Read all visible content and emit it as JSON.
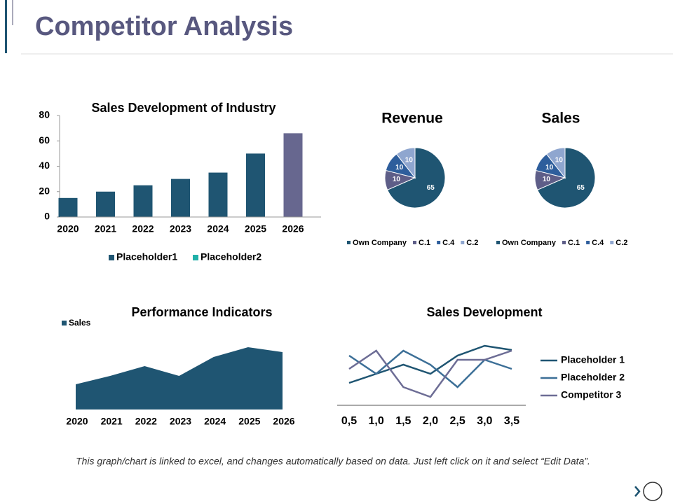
{
  "title": "Competitor Analysis",
  "footer": "This graph/chart is linked to excel, and changes automatically based on data. Just left click on it and select “Edit Data”.",
  "chart_data": [
    {
      "type": "bar",
      "title": "Sales Development of Industry",
      "categories": [
        "2020",
        "2021",
        "2022",
        "2023",
        "2024",
        "2025",
        "2026"
      ],
      "series": [
        {
          "name": "Placeholder1",
          "color": "#1f5572",
          "point_colors": [
            "#1f5572",
            "#1f5572",
            "#1f5572",
            "#1f5572",
            "#1f5572",
            "#1f5572",
            "#67678f"
          ],
          "values": [
            15,
            20,
            25,
            30,
            35,
            50,
            66
          ]
        },
        {
          "name": "Placeholder2",
          "color": "#1fb0a8",
          "values": [
            null,
            null,
            null,
            null,
            null,
            null,
            null
          ]
        }
      ],
      "ylim": [
        0,
        80
      ],
      "yticks": [
        0,
        20,
        40,
        60,
        80
      ],
      "grid": false
    },
    {
      "type": "pie",
      "title": "Revenue",
      "categories": [
        "Own Company",
        "C.1",
        "C.4",
        "C.2"
      ],
      "values": [
        65,
        10,
        10,
        10
      ],
      "colors": [
        "#1f5572",
        "#5e5e88",
        "#2e5e9c",
        "#8fa6cf"
      ]
    },
    {
      "type": "pie",
      "title": "Sales",
      "categories": [
        "Own Company",
        "C.1",
        "C.4",
        "C.2"
      ],
      "values": [
        65,
        10,
        10,
        10
      ],
      "colors": [
        "#1f5572",
        "#5e5e88",
        "#2e5e9c",
        "#8fa6cf"
      ]
    },
    {
      "type": "area",
      "title": "Performance Indicators",
      "categories": [
        "2020",
        "2021",
        "2022",
        "2023",
        "2024",
        "2025",
        "2026"
      ],
      "series": [
        {
          "name": "Sales",
          "color": "#1f5572",
          "values": [
            36,
            48,
            62,
            48,
            75,
            89,
            82
          ]
        }
      ]
    },
    {
      "type": "line",
      "title": "Sales Development",
      "categories": [
        "0,5",
        "1,0",
        "1,5",
        "2,0",
        "2,5",
        "3,0",
        "3,5"
      ],
      "series": [
        {
          "name": "Placeholder 1",
          "color": "#1f5572",
          "values": [
            32,
            45,
            58,
            45,
            71,
            85,
            79
          ]
        },
        {
          "name": "Placeholder 2",
          "color": "#3c6f97",
          "values": [
            71,
            45,
            78,
            58,
            26,
            65,
            52
          ]
        },
        {
          "name": "Competitor 3",
          "color": "#6d6d95",
          "values": [
            52,
            78,
            26,
            12,
            65,
            65,
            78
          ]
        }
      ]
    }
  ]
}
